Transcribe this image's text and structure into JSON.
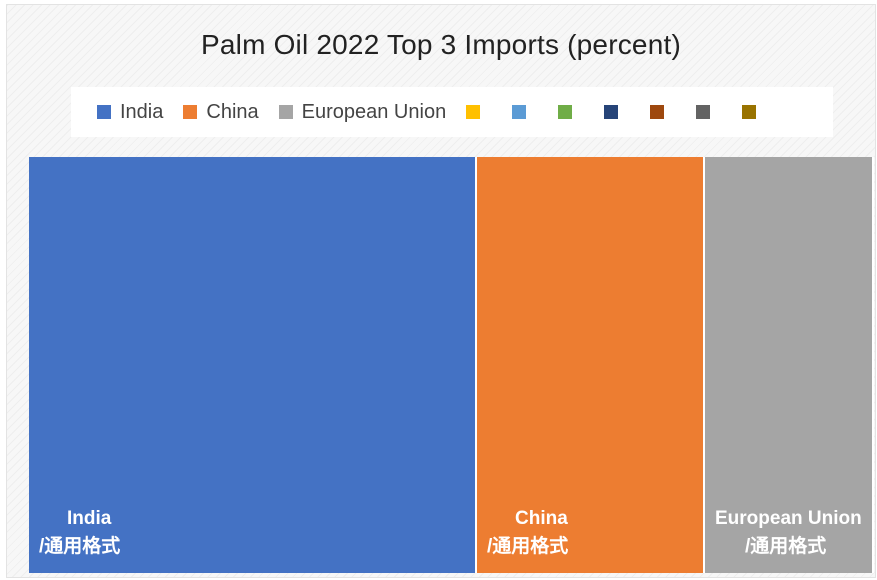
{
  "chart_data": {
    "type": "treemap",
    "title": "Palm Oil 2022 Top 3 Imports (percent)",
    "categories": [
      "India",
      "China",
      "European Union"
    ],
    "values": [
      53,
      27,
      20
    ],
    "data_labels": [
      "/通用格式",
      "/通用格式",
      "/通用格式"
    ],
    "colors": [
      "#4472c4",
      "#ed7d31",
      "#a5a5a5"
    ],
    "legend": {
      "position": "top",
      "entries": [
        "India",
        "China",
        "European Union",
        "",
        "",
        "",
        "",
        "",
        "",
        ""
      ],
      "colors": [
        "#4472c4",
        "#ed7d31",
        "#a5a5a5",
        "#ffc000",
        "#5b9bd5",
        "#70ad47",
        "#264478",
        "#9e480e",
        "#636363",
        "#997300"
      ]
    }
  }
}
